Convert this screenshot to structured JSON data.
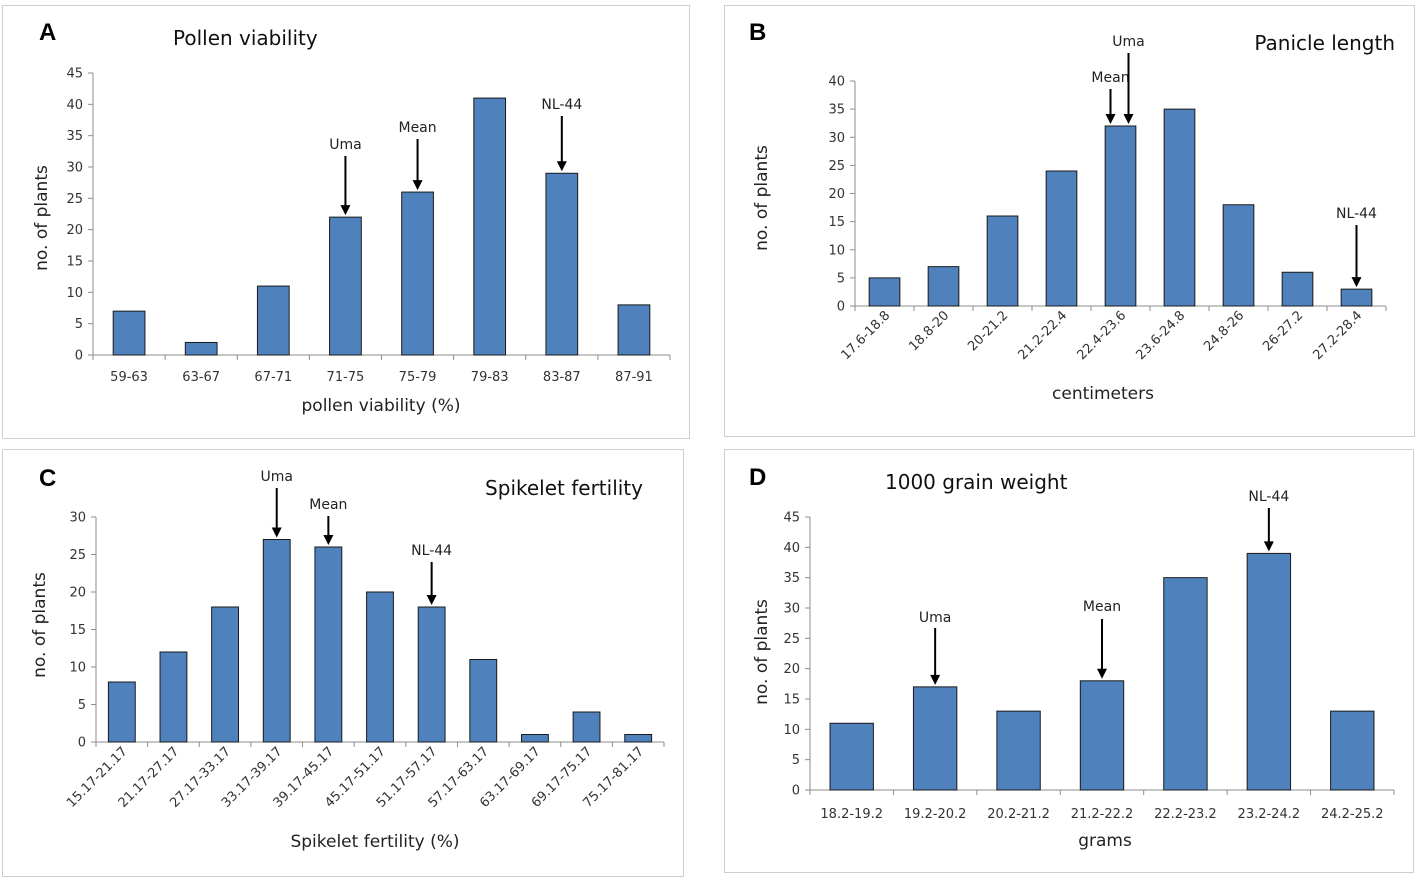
{
  "chart_data": [
    {
      "id": "A",
      "type": "bar",
      "panel_label": "A",
      "title": "Pollen viability",
      "xlabel": "pollen viability (%)",
      "ylabel": "no. of plants",
      "categories": [
        "59-63",
        "63-67",
        "67-71",
        "71-75",
        "75-79",
        "79-83",
        "83-87",
        "87-91"
      ],
      "values": [
        7,
        2,
        11,
        22,
        26,
        41,
        29,
        8
      ],
      "ylim": [
        0,
        45
      ],
      "yticks": [
        0,
        5,
        10,
        15,
        20,
        25,
        30,
        35,
        40,
        45
      ],
      "annotations": [
        {
          "label": "Uma",
          "category_index": 3
        },
        {
          "label": "Mean",
          "category_index": 4
        },
        {
          "label": "NL-44",
          "category_index": 6
        }
      ]
    },
    {
      "id": "B",
      "type": "bar",
      "panel_label": "B",
      "title": "Panicle length",
      "xlabel": "centimeters",
      "ylabel": "no. of plants",
      "categories": [
        "17.6-18.8",
        "18.8-20",
        "20-21.2",
        "21.2-22.4",
        "22.4-23.6",
        "23.6-24.8",
        "24.8-26",
        "26-27.2",
        "27.2-28.4"
      ],
      "values": [
        5,
        7,
        16,
        24,
        32,
        35,
        18,
        6,
        3
      ],
      "ylim": [
        0,
        40
      ],
      "yticks": [
        0,
        5,
        10,
        15,
        20,
        25,
        30,
        35,
        40
      ],
      "annotations": [
        {
          "label": "Mean",
          "category_index": 4
        },
        {
          "label": "Uma",
          "category_index": 4
        },
        {
          "label": "NL-44",
          "category_index": 8
        }
      ]
    },
    {
      "id": "C",
      "type": "bar",
      "panel_label": "C",
      "title": "Spikelet fertility",
      "xlabel": "Spikelet fertility (%)",
      "ylabel": "no. of plants",
      "categories": [
        "15.17-21.17",
        "21.17-27.17",
        "27.17-33.17",
        "33.17-39.17",
        "39.17-45.17",
        "45.17-51.17",
        "51.17-57.17",
        "57.17-63.17",
        "63.17-69.17",
        "69.17-75.17",
        "75.17-81.17"
      ],
      "values": [
        8,
        12,
        18,
        27,
        26,
        20,
        18,
        11,
        1,
        4,
        1
      ],
      "ylim": [
        0,
        30
      ],
      "yticks": [
        0,
        5,
        10,
        15,
        20,
        25,
        30
      ],
      "annotations": [
        {
          "label": "Uma",
          "category_index": 3
        },
        {
          "label": "Mean",
          "category_index": 4
        },
        {
          "label": "NL-44",
          "category_index": 6
        }
      ]
    },
    {
      "id": "D",
      "type": "bar",
      "panel_label": "D",
      "title": "1000 grain weight",
      "xlabel": "grams",
      "ylabel": "no. of plants",
      "categories": [
        "18.2-19.2",
        "19.2-20.2",
        "20.2-21.2",
        "21.2-22.2",
        "22.2-23.2",
        "23.2-24.2",
        "24.2-25.2"
      ],
      "values": [
        11,
        17,
        13,
        18,
        35,
        39,
        13
      ],
      "ylim": [
        0,
        45
      ],
      "yticks": [
        0,
        5,
        10,
        15,
        20,
        25,
        30,
        35,
        40,
        45
      ],
      "annotations": [
        {
          "label": "Uma",
          "category_index": 1
        },
        {
          "label": "Mean",
          "category_index": 3
        },
        {
          "label": "NL-44",
          "category_index": 5
        }
      ]
    }
  ]
}
